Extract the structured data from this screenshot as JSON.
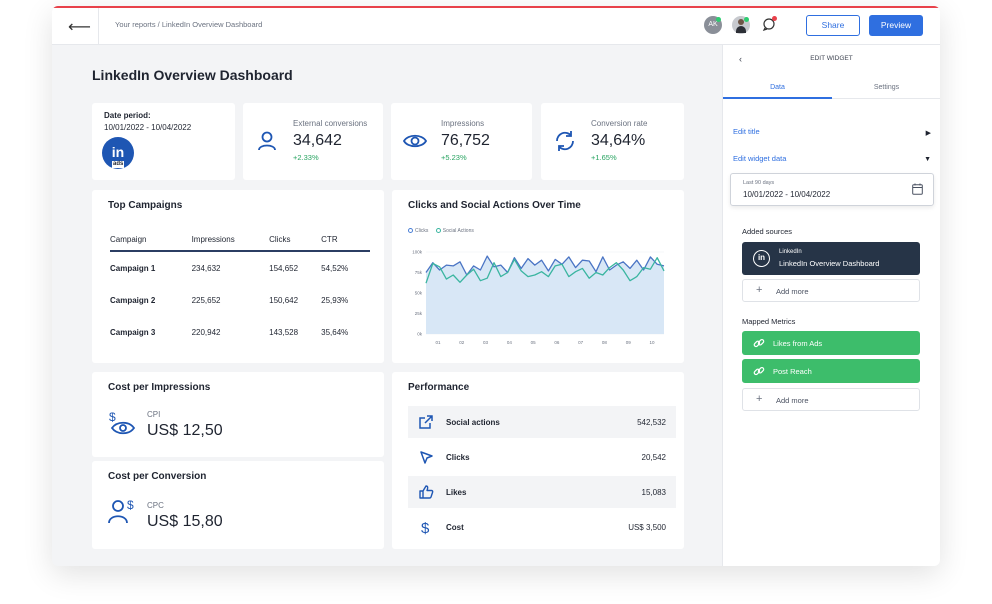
{
  "topbar": {
    "breadcrumb": "Your reports / LinkedIn Overview Dashboard",
    "avatar_initials": "AK",
    "share_label": "Share",
    "preview_label": "Preview"
  },
  "page_title": "LinkedIn Overview Dashboard",
  "date_card": {
    "label": "Date period:",
    "value": "10/01/2022 - 10/04/2022",
    "badge_text": "in",
    "badge_sub": "ads"
  },
  "kpis": [
    {
      "label": "External conversions",
      "value": "34,642",
      "delta": "+2.33%",
      "icon": "user-icon"
    },
    {
      "label": "Impressions",
      "value": "76,752",
      "delta": "+5.23%",
      "icon": "eye-icon"
    },
    {
      "label": "Conversion rate",
      "value": "34,64%",
      "delta": "+1.65%",
      "icon": "refresh-icon"
    }
  ],
  "campaigns": {
    "title": "Top Campaigns",
    "headers": [
      "Campaign",
      "Impressions",
      "Clicks",
      "CTR"
    ],
    "rows": [
      [
        "Campaign 1",
        "234,632",
        "154,652",
        "54,52%"
      ],
      [
        "Campaign 2",
        "225,652",
        "150,642",
        "25,93%"
      ],
      [
        "Campaign 3",
        "220,942",
        "143,528",
        "35,64%"
      ]
    ]
  },
  "chart_data": {
    "type": "area",
    "title": "Clicks and Social Actions Over Time",
    "legend": [
      "Clicks",
      "Social Actions"
    ],
    "x_ticks": [
      "01",
      "02",
      "03",
      "04",
      "05",
      "06",
      "07",
      "08",
      "09",
      "10"
    ],
    "y_ticks": [
      "100k",
      "75k",
      "50k",
      "25k",
      "0k"
    ],
    "ylim": [
      0,
      100
    ],
    "series": [
      {
        "name": "Clicks",
        "color": "#4a74c4",
        "values": [
          75,
          87,
          78,
          84,
          83,
          88,
          72,
          83,
          78,
          95,
          82,
          84,
          75,
          93,
          80,
          92,
          84,
          90,
          77,
          91,
          85,
          94,
          81,
          90,
          89,
          76,
          94,
          78,
          84,
          88,
          80,
          90,
          78,
          94,
          85,
          83
        ]
      },
      {
        "name": "Social Actions",
        "color": "#3ab5a0",
        "values": [
          62,
          86,
          82,
          67,
          72,
          63,
          72,
          79,
          65,
          68,
          87,
          70,
          75,
          91,
          77,
          70,
          72,
          76,
          70,
          83,
          85,
          70,
          76,
          80,
          68,
          75,
          72,
          81,
          87,
          78,
          65,
          70,
          81,
          79,
          93,
          77
        ]
      }
    ]
  },
  "cpi": {
    "title": "Cost per Impressions",
    "label": "CPI",
    "value": "US$ 12,50"
  },
  "cpc": {
    "title": "Cost per Conversion",
    "label": "CPC",
    "value": "US$ 15,80"
  },
  "performance": {
    "title": "Performance",
    "rows": [
      {
        "name": "Social actions",
        "value": "542,532",
        "icon": "external-link-icon"
      },
      {
        "name": "Clicks",
        "value": "20,542",
        "icon": "cursor-icon"
      },
      {
        "name": "Likes",
        "value": "15,083",
        "icon": "thumbs-up-icon"
      },
      {
        "name": "Cost",
        "value": "US$ 3,500",
        "icon": "dollar-icon"
      }
    ]
  },
  "panel": {
    "title": "EDIT WIDGET",
    "tab_data": "Data",
    "tab_settings": "Settings",
    "edit_title": "Edit title",
    "edit_data": "Edit widget data",
    "date_small": "Last 90 days",
    "date_value": "10/01/2022 - 10/04/2022",
    "added_sources": "Added sources",
    "source_top": "LinkedIn",
    "source_bottom": "LinkedIn Overview Dashboard",
    "add_more": "Add more",
    "mapped_metrics": "Mapped Metrics",
    "metric_1": "Likes from Ads",
    "metric_2": "Post Reach",
    "colors": {
      "accent": "#2f6fe0",
      "green": "#3dbd6b",
      "source_bg": "#263447"
    }
  }
}
